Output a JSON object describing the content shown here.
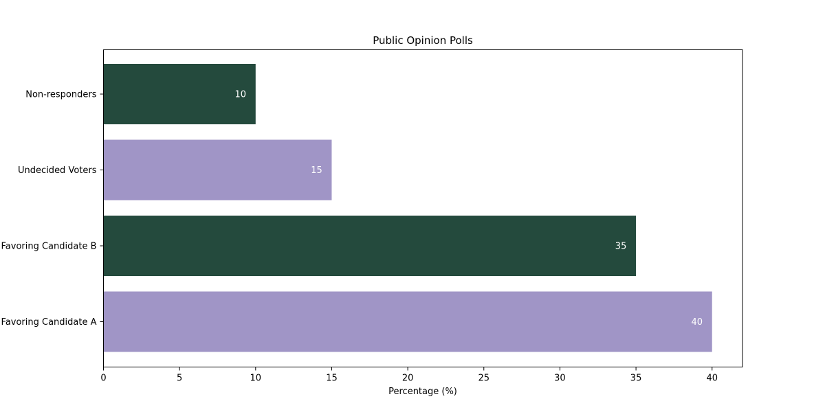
{
  "chart_data": {
    "type": "bar",
    "orientation": "horizontal",
    "title": "Public Opinion Polls",
    "xlabel": "Percentage (%)",
    "ylabel": "",
    "categories": [
      "Favoring Candidate A",
      "Favoring Candidate B",
      "Undecided Voters",
      "Non-responders"
    ],
    "values": [
      40,
      35,
      15,
      10
    ],
    "value_labels": [
      "40",
      "35",
      "15",
      "10"
    ],
    "bar_colors": [
      "#a095c6",
      "#244a3d",
      "#a095c6",
      "#244a3d"
    ],
    "value_label_color": "#ffffff",
    "xlim": [
      0,
      42
    ],
    "xticks": [
      0,
      5,
      10,
      15,
      20,
      25,
      30,
      35,
      40
    ],
    "xtick_labels": [
      "0",
      "5",
      "10",
      "15",
      "20",
      "25",
      "30",
      "35",
      "40"
    ],
    "grid": false,
    "legend": "none"
  }
}
